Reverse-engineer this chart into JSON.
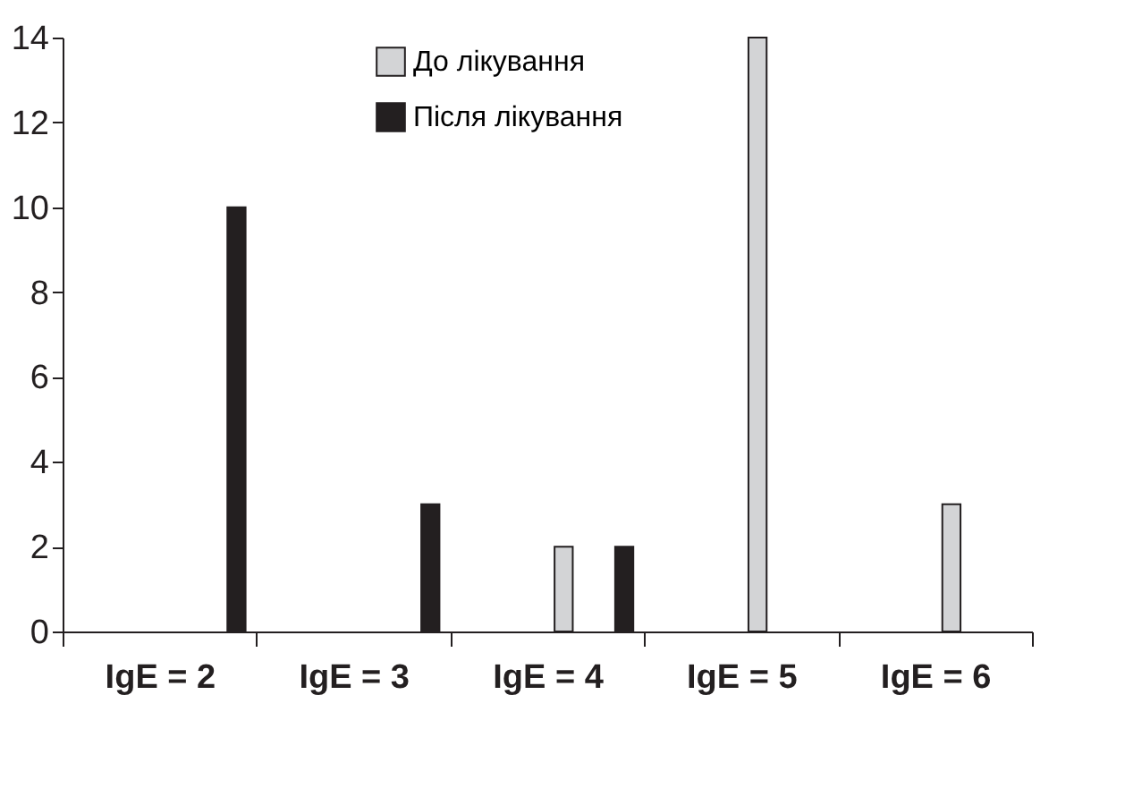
{
  "chart_data": {
    "type": "bar",
    "categories": [
      "IgE = 2",
      "IgE = 3",
      "IgE = 4",
      "IgE = 5",
      "IgE = 6"
    ],
    "series": [
      {
        "name": "До лікування",
        "color": "#d3d4d6",
        "values": [
          null,
          null,
          2,
          14,
          3
        ]
      },
      {
        "name": "Після лікування",
        "color": "#231f20",
        "values": [
          10,
          3,
          2,
          null,
          null
        ]
      }
    ],
    "ylim": [
      0,
      14
    ],
    "yticks": [
      0,
      2,
      4,
      6,
      8,
      10,
      12,
      14
    ],
    "grid": false,
    "legend": "top"
  }
}
